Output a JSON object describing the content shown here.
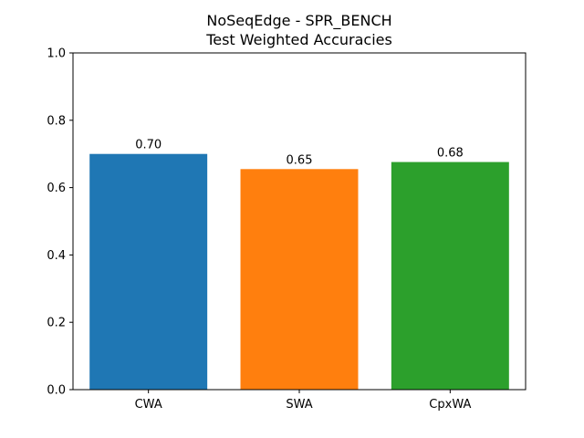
{
  "chart_data": {
    "type": "bar",
    "title": "NoSeqEdge - SPR_BENCH",
    "subtitle": "Test Weighted Accuracies",
    "categories": [
      "CWA",
      "SWA",
      "CpxWA"
    ],
    "values": [
      0.7,
      0.655,
      0.676
    ],
    "value_labels": [
      "0.70",
      "0.65",
      "0.68"
    ],
    "colors": [
      "#1f77b4",
      "#ff7f0e",
      "#2ca02c"
    ],
    "xlabel": "",
    "ylabel": "",
    "ylim": [
      0,
      1.0
    ],
    "yticks": [
      0.0,
      0.2,
      0.4,
      0.6,
      0.8,
      1.0
    ],
    "ytick_labels": [
      "0.0",
      "0.2",
      "0.4",
      "0.6",
      "0.8",
      "1.0"
    ],
    "grid": false
  }
}
